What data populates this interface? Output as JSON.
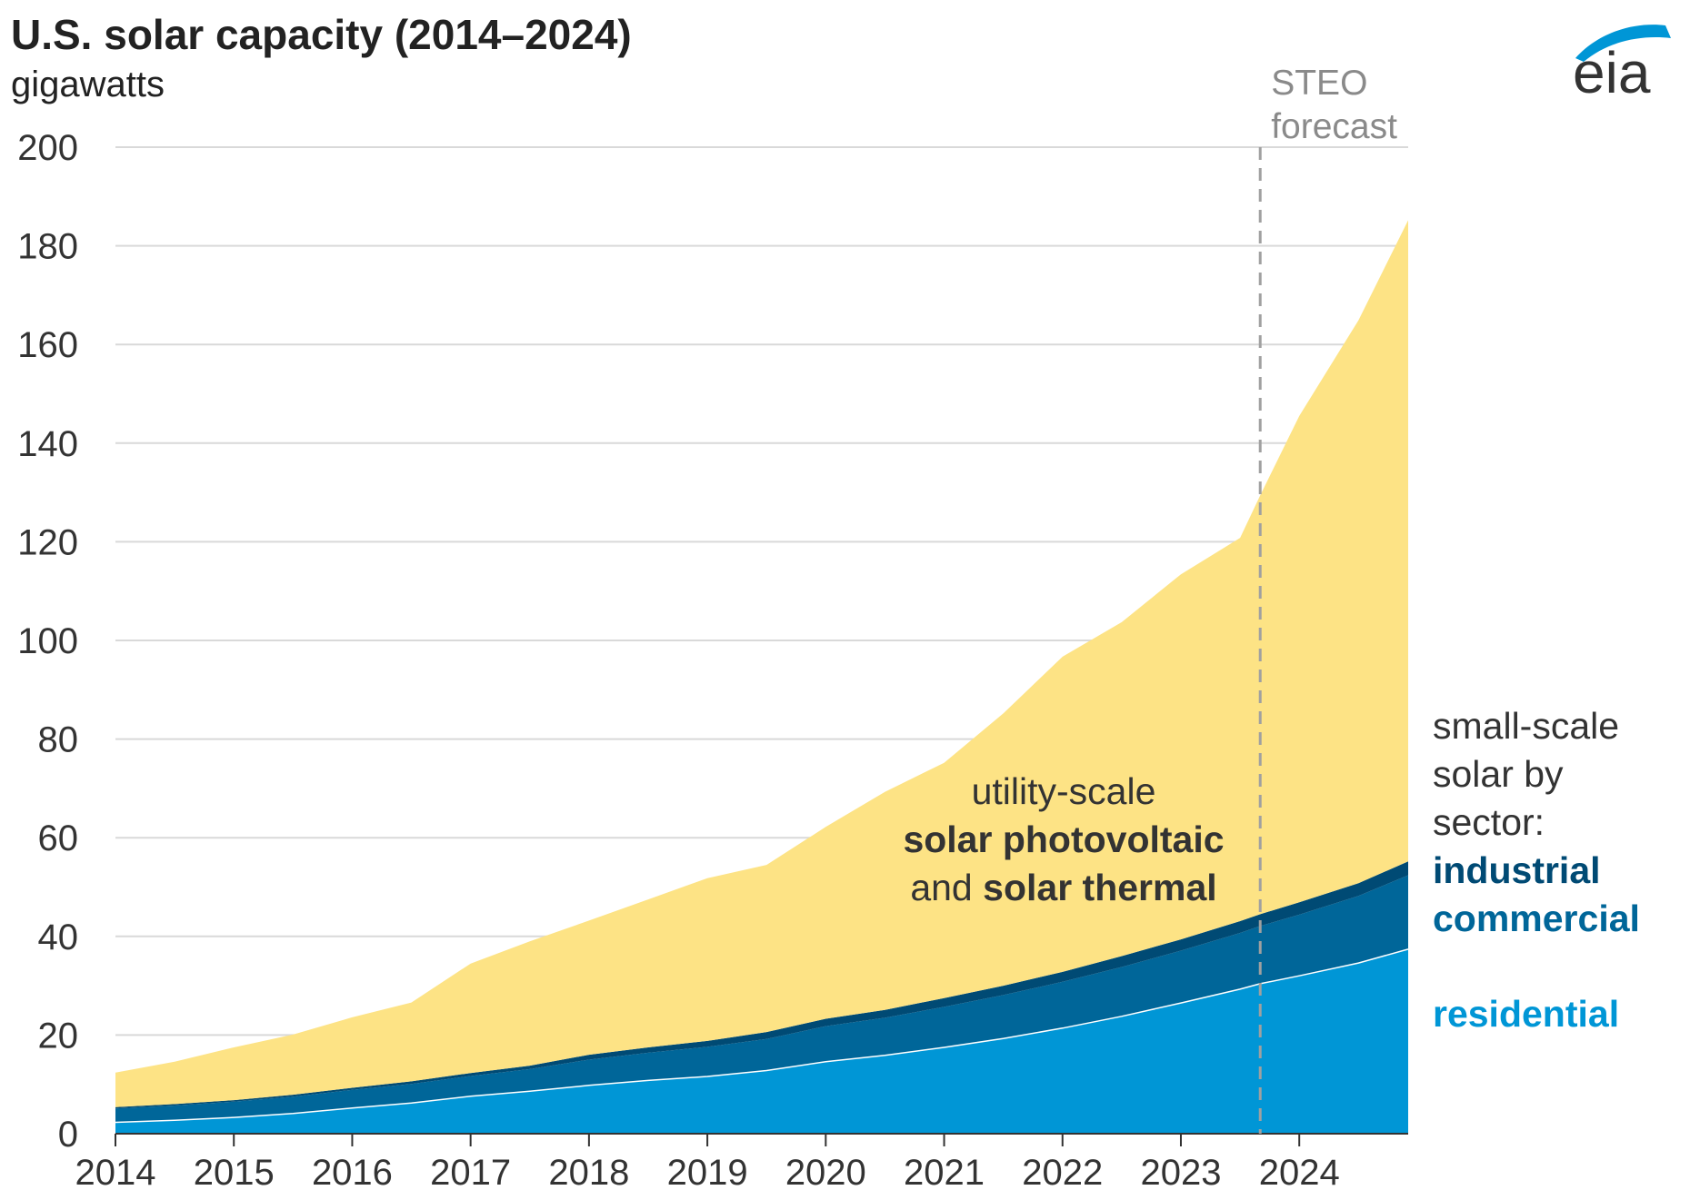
{
  "chart_data": {
    "type": "area",
    "stacked": true,
    "title": "U.S. solar capacity (2014–2024)",
    "ylabel": "gigawatts",
    "xlim": [
      2014,
      2024.92
    ],
    "ylim": [
      0,
      200
    ],
    "yticks": [
      "0",
      "20",
      "40",
      "60",
      "80",
      "100",
      "120",
      "140",
      "160",
      "180",
      "200"
    ],
    "xticks": [
      "2014",
      "2015",
      "2016",
      "2017",
      "2018",
      "2019",
      "2020",
      "2021",
      "2022",
      "2023",
      "2024"
    ],
    "grid": true,
    "forecast": {
      "start_x": 2023.67,
      "label_line1": "STEO",
      "label_line2": "forecast"
    },
    "x": [
      2014.0,
      2014.5,
      2015.0,
      2015.5,
      2016.0,
      2016.5,
      2017.0,
      2017.5,
      2018.0,
      2018.5,
      2019.0,
      2019.5,
      2020.0,
      2020.5,
      2021.0,
      2021.5,
      2022.0,
      2022.5,
      2023.0,
      2023.5,
      2023.67,
      2024.0,
      2024.5,
      2024.92
    ],
    "series": [
      {
        "name": "residential",
        "color": "#0096d6",
        "values": [
          2.3,
          2.7,
          3.3,
          4.1,
          5.2,
          6.2,
          7.6,
          8.6,
          9.8,
          10.8,
          11.6,
          12.8,
          14.6,
          15.9,
          17.5,
          19.3,
          21.4,
          23.8,
          26.5,
          29.3,
          30.4,
          32.0,
          34.6,
          37.4
        ]
      },
      {
        "name": "commercial",
        "color": "#006699",
        "values": [
          2.8,
          3.0,
          3.2,
          3.4,
          3.7,
          3.9,
          4.1,
          4.5,
          5.2,
          5.6,
          6.0,
          6.4,
          7.2,
          7.6,
          8.2,
          8.8,
          9.4,
          10.0,
          10.6,
          11.4,
          11.7,
          12.4,
          13.6,
          15.0
        ]
      },
      {
        "name": "industrial",
        "color": "#004a74",
        "values": [
          0.3,
          0.3,
          0.3,
          0.4,
          0.4,
          0.5,
          0.6,
          0.7,
          1.0,
          1.1,
          1.2,
          1.4,
          1.5,
          1.6,
          1.8,
          1.9,
          2.0,
          2.2,
          2.3,
          2.4,
          2.4,
          2.5,
          2.6,
          2.8
        ]
      },
      {
        "name": "utility-scale solar photovoltaic and solar thermal",
        "color": "#fde385",
        "values": [
          7.0,
          8.6,
          10.7,
          12.2,
          14.3,
          16.0,
          22.2,
          25.2,
          27.2,
          30.0,
          33.0,
          33.9,
          38.9,
          44.2,
          47.7,
          55.2,
          63.9,
          67.7,
          74.0,
          77.7,
          84.9,
          98.6,
          114.1,
          130.0
        ]
      }
    ],
    "annotations": {
      "utility_line1": "utility-scale",
      "utility_line2_bold": "solar photovoltaic",
      "utility_line3_pre": "and",
      "utility_line3_bold": "solar thermal",
      "legend_line1": "small-scale",
      "legend_line2": "solar by",
      "legend_line3": "sector:",
      "legend_industrial": "industrial",
      "legend_commercial": "commercial",
      "legend_residential": "residential"
    },
    "source_logo": "eia"
  }
}
